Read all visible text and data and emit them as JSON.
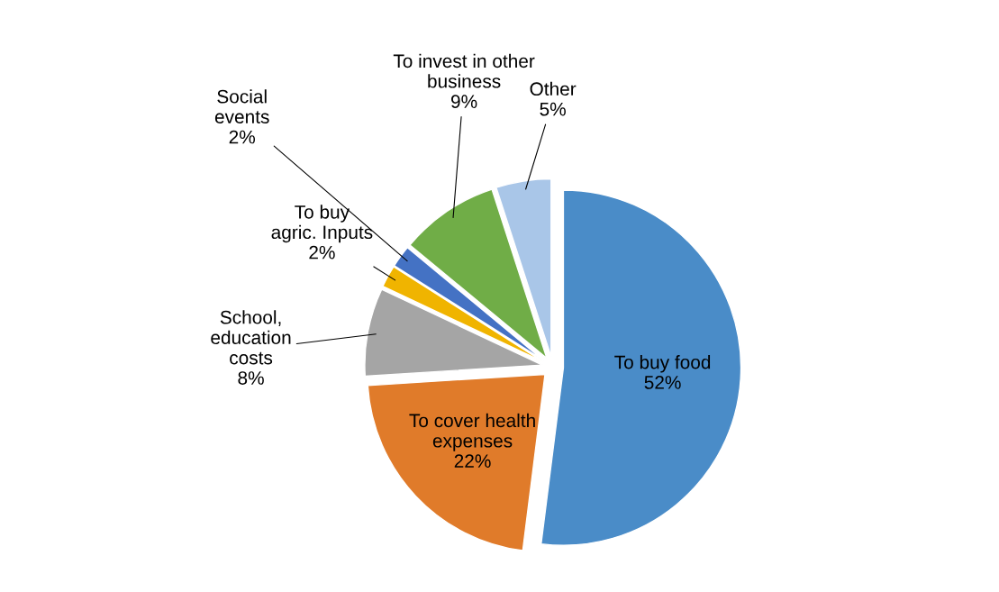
{
  "chart_data": {
    "type": "pie",
    "categories": [
      "To buy food",
      "To cover health\nexpenses",
      "School,\neducation\ncosts",
      "To buy\nagric. Inputs",
      "Social\nevents",
      "To invest in other\nbusiness",
      "Other"
    ],
    "values": [
      52,
      22,
      8,
      2,
      2,
      9,
      5
    ],
    "value_labels": [
      "52%",
      "22%",
      "8%",
      "2%",
      "2%",
      "9%",
      "5%"
    ],
    "colors": [
      "#4a8cc8",
      "#e07b2a",
      "#a5a5a5",
      "#f0b400",
      "#4472c4",
      "#70ad47",
      "#a9c6e8"
    ],
    "legend": false
  }
}
